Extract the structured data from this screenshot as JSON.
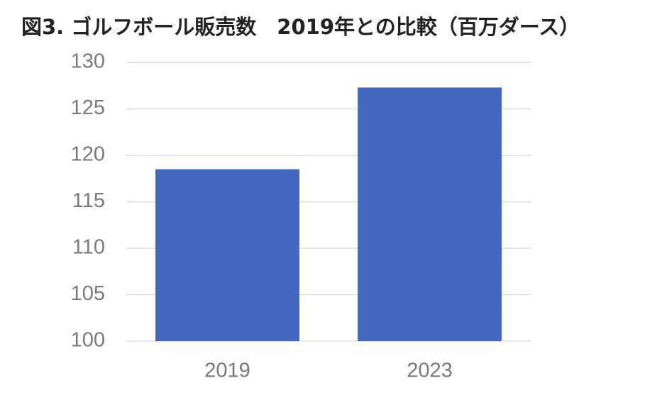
{
  "chart_data": {
    "type": "bar",
    "title": "図3. ゴルフボール販売数　2019年との比較（百万ダース）",
    "categories": [
      "2019",
      "2023"
    ],
    "values": [
      118.5,
      127.3
    ],
    "color": "#4468bf",
    "ylim": [
      100,
      130
    ],
    "yticks": [
      100,
      105,
      110,
      115,
      120,
      125,
      130
    ],
    "grid": true
  }
}
